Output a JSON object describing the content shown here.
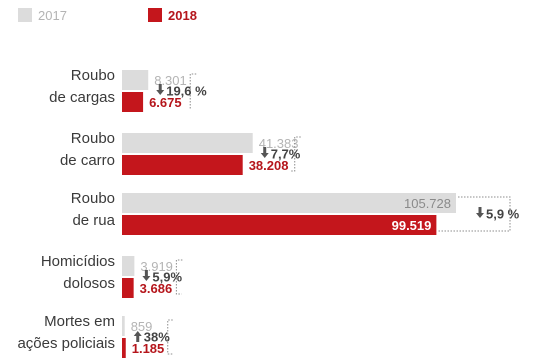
{
  "colors": {
    "y2017": "#dcdcdc",
    "y2017_text": "#b4b4b4",
    "y2018": "#c4161c",
    "y2018_text": "#b5151b",
    "bracket": "#8c8c8c",
    "change_text": "#444444",
    "label_text": "#3a3a3a"
  },
  "chart_data": {
    "type": "bar",
    "orientation": "horizontal",
    "legend_position": "top-left",
    "series": [
      {
        "name": "2017",
        "values": [
          8301,
          41383,
          105728,
          3919,
          859
        ]
      },
      {
        "name": "2018",
        "values": [
          6675,
          38208,
          99519,
          3686,
          1185
        ]
      }
    ],
    "categories": [
      {
        "lines": [
          "Roubo",
          "de cargas"
        ]
      },
      {
        "lines": [
          "Roubo",
          "de carro"
        ]
      },
      {
        "lines": [
          "Roubo",
          "de rua"
        ]
      },
      {
        "lines": [
          "Homicídios",
          "dolosos"
        ]
      },
      {
        "lines": [
          "Mortes em",
          "ações policiais"
        ]
      }
    ],
    "value_labels_2017": [
      "8.301",
      "41.383",
      "105.728",
      "3.919",
      "859"
    ],
    "value_labels_2018": [
      "6.675",
      "38.208",
      "99.519",
      "3.686",
      "1.185"
    ],
    "changes": [
      {
        "direction": "down",
        "text": "19,6 %"
      },
      {
        "direction": "down",
        "text": "7,7%"
      },
      {
        "direction": "down",
        "text": "5,9 %"
      },
      {
        "direction": "down",
        "text": "5,9%"
      },
      {
        "direction": "up",
        "text": "38%"
      }
    ]
  }
}
